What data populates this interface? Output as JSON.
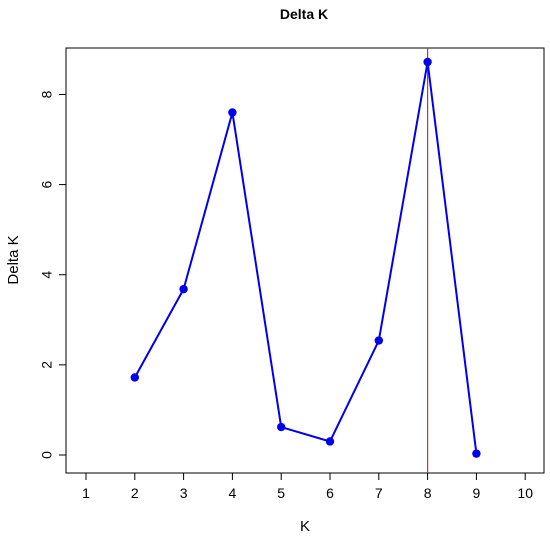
{
  "chart_data": {
    "type": "line",
    "title": "Delta K",
    "xlabel": "K",
    "ylabel": "Delta K",
    "x_ticks": [
      1,
      2,
      3,
      4,
      5,
      6,
      7,
      8,
      9,
      10
    ],
    "y_ticks": [
      0,
      2,
      4,
      6,
      8
    ],
    "xlim": [
      1,
      10
    ],
    "ylim": [
      0,
      8.72
    ],
    "grid": false,
    "series": [
      {
        "color": "#0000ee",
        "x": [
          2,
          3,
          4,
          5,
          6,
          7,
          8,
          9
        ],
        "y": [
          1.72,
          3.68,
          7.6,
          0.62,
          0.3,
          2.54,
          8.72,
          0.03
        ]
      }
    ],
    "reference_line": {
      "orientation": "vertical",
      "x": 8,
      "color": "#c0392b"
    }
  }
}
